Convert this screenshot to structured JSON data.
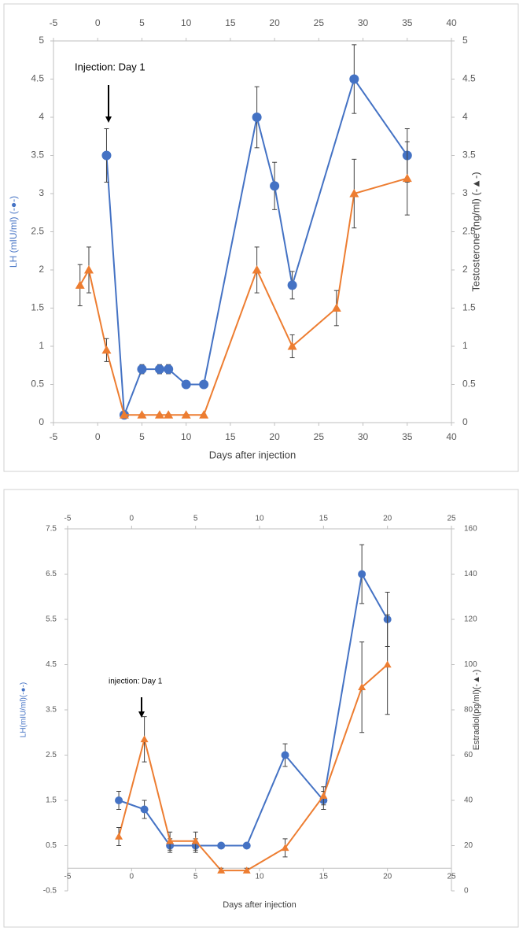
{
  "chart_data": [
    {
      "type": "line",
      "xlabel": "Days after injection",
      "ylabel": "LH (mIU/ml) (-●-)",
      "y2label": "Testosterone (ng/ml) (-▲-)",
      "annotation": "Injection: Day 1",
      "xlim": [
        -5,
        40
      ],
      "xticks": [
        -5,
        0,
        5,
        10,
        15,
        20,
        25,
        30,
        35,
        40
      ],
      "x2lim": [
        -5,
        40
      ],
      "x2ticks": [
        -5,
        0,
        5,
        10,
        15,
        20,
        25,
        30,
        35,
        40
      ],
      "ylim": [
        0,
        5
      ],
      "yticks": [
        0,
        0.5,
        1,
        1.5,
        2,
        2.5,
        3,
        3.5,
        4,
        4.5,
        5
      ],
      "y2lim": [
        0,
        5
      ],
      "y2ticks": [
        0,
        0.5,
        1,
        1.5,
        2,
        2.5,
        3,
        3.5,
        4,
        4.5,
        5
      ],
      "grid": false,
      "series": [
        {
          "color": "#4472c4",
          "marker": "circle",
          "axis": "y",
          "x": [
            1,
            3,
            5,
            7,
            8,
            10,
            12,
            18,
            20,
            22,
            29,
            35
          ],
          "values": [
            3.5,
            0.1,
            0.7,
            0.7,
            0.7,
            0.5,
            0.5,
            4.0,
            3.1,
            1.8,
            4.5,
            3.5
          ],
          "errors": [
            0.35,
            0.02,
            0.06,
            0.06,
            0.06,
            0.02,
            0.02,
            0.4,
            0.31,
            0.18,
            0.45,
            0.35
          ]
        },
        {
          "color": "#ed7d31",
          "marker": "triangle",
          "axis": "y2",
          "x": [
            -2,
            -1,
            1,
            3,
            5,
            7,
            8,
            10,
            12,
            18,
            22,
            27,
            29,
            35
          ],
          "values": [
            1.8,
            2.0,
            0.95,
            0.1,
            0.1,
            0.1,
            0.1,
            0.1,
            0.1,
            2.0,
            1.0,
            1.5,
            3.0,
            3.2
          ],
          "errors": [
            0.27,
            0.3,
            0.15,
            0.01,
            0.01,
            0.01,
            0.01,
            0.01,
            0.01,
            0.3,
            0.15,
            0.23,
            0.45,
            0.48
          ]
        }
      ]
    },
    {
      "type": "line",
      "xlabel": "Days after injection",
      "ylabel": "LH(mIU/ml)(-●-)",
      "y2label": "Estradiol(pg/ml)(-▲-)",
      "annotation": "injection: Day 1",
      "xlim": [
        -5,
        25
      ],
      "xticks": [
        -5,
        0,
        5,
        10,
        15,
        20,
        25
      ],
      "x2lim": [
        -5,
        25
      ],
      "x2ticks": [
        -5,
        0,
        5,
        10,
        15,
        20,
        25
      ],
      "ylim": [
        -0.5,
        7.5
      ],
      "yticks": [
        -0.5,
        0.5,
        1.5,
        2.5,
        3.5,
        4.5,
        5.5,
        6.5,
        7.5
      ],
      "y2lim": [
        0,
        160
      ],
      "y2ticks": [
        0,
        20,
        40,
        60,
        80,
        100,
        120,
        140,
        160
      ],
      "grid": false,
      "series": [
        {
          "color": "#4472c4",
          "marker": "circle",
          "axis": "y",
          "x": [
            -1,
            1,
            3,
            5,
            7,
            9,
            12,
            15,
            18,
            20
          ],
          "values": [
            1.5,
            1.3,
            0.5,
            0.5,
            0.5,
            0.5,
            2.5,
            1.5,
            6.5,
            5.5
          ],
          "errors": [
            0.2,
            0.2,
            0.15,
            0.15,
            0.02,
            0.02,
            0.25,
            0.2,
            0.65,
            0.6
          ]
        },
        {
          "color": "#ed7d31",
          "marker": "triangle",
          "axis": "y2",
          "x": [
            -1,
            1,
            3,
            5,
            7,
            9,
            12,
            15,
            18,
            20
          ],
          "values": [
            24,
            67,
            22,
            22,
            9,
            9,
            19,
            42,
            90,
            100
          ],
          "errors": [
            4,
            10,
            4,
            4,
            1,
            1,
            4,
            4,
            20,
            22
          ]
        }
      ]
    }
  ]
}
